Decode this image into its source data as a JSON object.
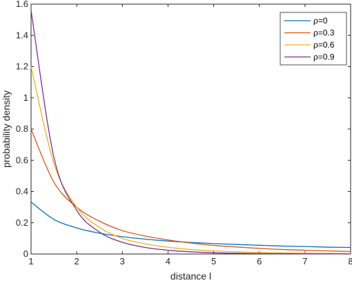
{
  "chart_data": {
    "type": "line",
    "title": "",
    "xlabel": "distance l",
    "ylabel": "probability density",
    "xlim": [
      1,
      8
    ],
    "ylim": [
      0,
      1.6
    ],
    "x_ticks": [
      1,
      2,
      3,
      4,
      5,
      6,
      7,
      8
    ],
    "y_ticks": [
      0,
      0.2,
      0.4,
      0.6,
      0.8,
      1,
      1.2,
      1.4,
      1.6
    ],
    "x_tick_labels": [
      "1",
      "2",
      "3",
      "4",
      "5",
      "6",
      "7",
      "8"
    ],
    "y_tick_labels": [
      "0",
      "0.2",
      "0.4",
      "0.6",
      "0.8",
      "1",
      "1.2",
      "1.4",
      "1.6"
    ],
    "grid": false,
    "legend_position": "top-right",
    "x": [
      1,
      1.5,
      2,
      2.5,
      3,
      3.5,
      4,
      4.5,
      5,
      5.5,
      6,
      6.5,
      7,
      7.5,
      8
    ],
    "series": [
      {
        "name": "ρ=0",
        "color": "#0072BD",
        "values": [
          0.333,
          0.222,
          0.167,
          0.133,
          0.111,
          0.095,
          0.083,
          0.074,
          0.067,
          0.061,
          0.056,
          0.051,
          0.048,
          0.044,
          0.042
        ]
      },
      {
        "name": "ρ=0.3",
        "color": "#D95319",
        "values": [
          0.8,
          0.46,
          0.3,
          0.21,
          0.15,
          0.115,
          0.09,
          0.07,
          0.055,
          0.045,
          0.036,
          0.029,
          0.024,
          0.02,
          0.016
        ]
      },
      {
        "name": "ρ=0.6",
        "color": "#EDB120",
        "values": [
          1.2,
          0.58,
          0.3,
          0.17,
          0.1,
          0.065,
          0.043,
          0.029,
          0.02,
          0.014,
          0.01,
          0.007,
          0.005,
          0.004,
          0.003
        ]
      },
      {
        "name": "ρ=0.9",
        "color": "#7E2F8E",
        "values": [
          1.56,
          0.62,
          0.28,
          0.14,
          0.075,
          0.042,
          0.024,
          0.014,
          0.008,
          0.005,
          0.003,
          0.002,
          0.001,
          0.001,
          0.0
        ]
      }
    ]
  }
}
